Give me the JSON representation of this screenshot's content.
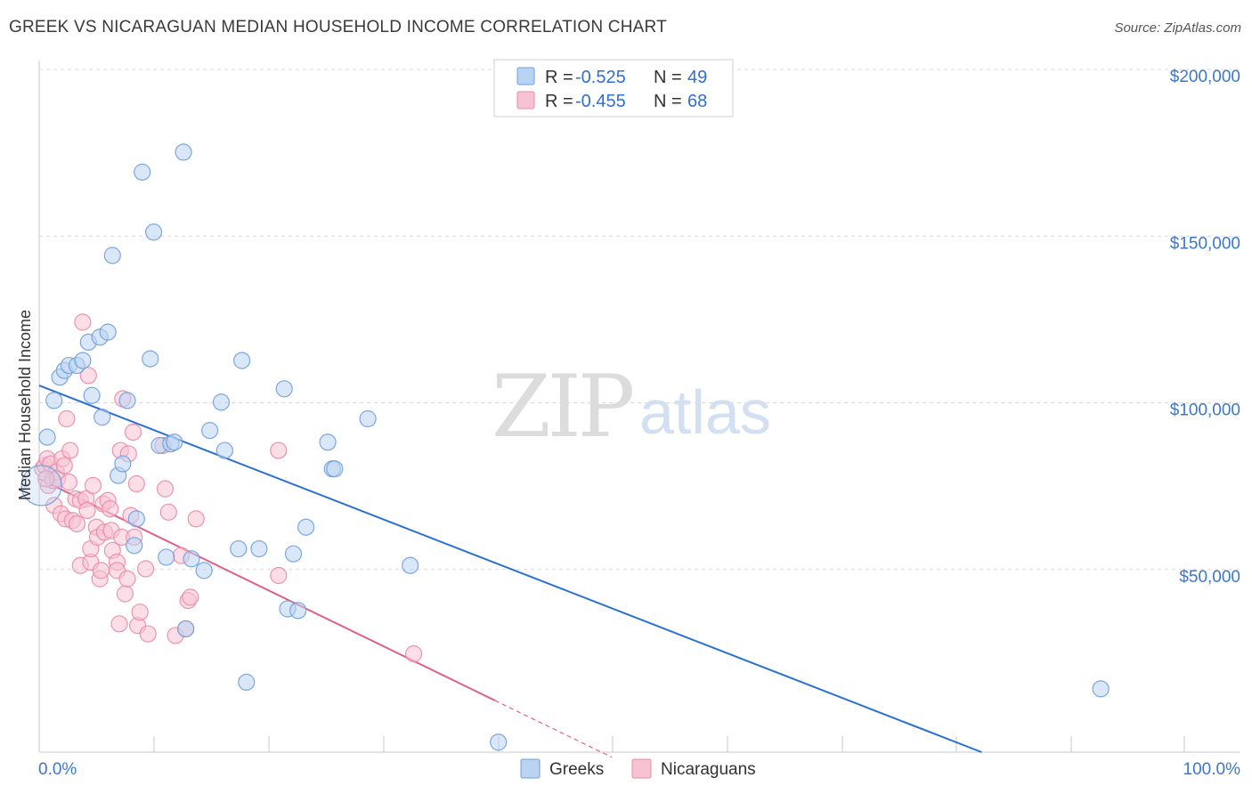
{
  "title": "GREEK VS NICARAGUAN MEDIAN HOUSEHOLD INCOME CORRELATION CHART",
  "source": "Source: ZipAtlas.com",
  "watermark": {
    "zip": "ZIP",
    "atlas": "atlas"
  },
  "colors": {
    "greeks_fill": "#b9d3f3",
    "greeks_stroke": "#6f9fdc",
    "greeks_line": "#2b6fd6",
    "nicaraguans_fill": "#f7c3d2",
    "nicaraguans_stroke": "#e98aa8",
    "nicaraguans_line": "#e0608d",
    "tick_text": "#3b78c8",
    "grid": "#d8d8d8"
  },
  "legend": {
    "greeks": {
      "r_label": "R =",
      "r_value": "-0.525",
      "n_label": "N =",
      "n_value": "49"
    },
    "nicaraguans": {
      "r_label": "R =",
      "r_value": "-0.455",
      "n_label": "N =",
      "n_value": "68"
    }
  },
  "bottom_legend": {
    "greeks": "Greeks",
    "nicaraguans": "Nicaraguans"
  },
  "chart_data": {
    "type": "scatter",
    "title": "GREEK VS NICARAGUAN MEDIAN HOUSEHOLD INCOME CORRELATION CHART",
    "ylabel": "Median Household Income",
    "xlabel": "",
    "xlim": [
      0,
      100
    ],
    "ylim": [
      0,
      210000
    ],
    "x_tick_labels": {
      "left": "0.0%",
      "right": "100.0%"
    },
    "x_minor_ticks": [
      0,
      10,
      20,
      30,
      40,
      50,
      60,
      70,
      80,
      90,
      100
    ],
    "y_ticks": [
      {
        "value": 50000,
        "label": "$50,000"
      },
      {
        "value": 100000,
        "label": "$100,000"
      },
      {
        "value": 150000,
        "label": "$150,000"
      },
      {
        "value": 200000,
        "label": "$200,000"
      }
    ],
    "series": [
      {
        "name": "Greeks",
        "r": -0.525,
        "n": 49,
        "trend": {
          "x0": 0,
          "y0": 110000,
          "x1": 82.3,
          "y1": 0,
          "dashed_after_x": null
        },
        "points": [
          [
            0.7,
            94500,
            1
          ],
          [
            1.3,
            105500,
            1
          ],
          [
            1.8,
            112500,
            1
          ],
          [
            2.2,
            114500,
            1
          ],
          [
            2.6,
            116000,
            1
          ],
          [
            3.3,
            116000,
            1
          ],
          [
            3.8,
            117500,
            1
          ],
          [
            4.3,
            123000,
            1
          ],
          [
            4.6,
            107000,
            1
          ],
          [
            5.3,
            124500,
            1
          ],
          [
            5.5,
            100500,
            1
          ],
          [
            6.0,
            126000,
            1
          ],
          [
            6.4,
            149000,
            1
          ],
          [
            6.9,
            83000,
            1
          ],
          [
            7.3,
            86500,
            1
          ],
          [
            7.7,
            105500,
            1
          ],
          [
            8.3,
            62000,
            1
          ],
          [
            8.5,
            70000,
            1
          ],
          [
            9.0,
            174000,
            1
          ],
          [
            9.7,
            118000,
            1
          ],
          [
            10.0,
            156000,
            1
          ],
          [
            10.5,
            92000,
            1
          ],
          [
            11.1,
            58500,
            1
          ],
          [
            11.5,
            92500,
            1
          ],
          [
            11.8,
            93000,
            1
          ],
          [
            12.6,
            180000,
            1
          ],
          [
            12.8,
            37000,
            1
          ],
          [
            13.3,
            58000,
            1
          ],
          [
            14.4,
            54500,
            1
          ],
          [
            14.9,
            96500,
            1
          ],
          [
            15.9,
            105000,
            1
          ],
          [
            16.2,
            90500,
            1
          ],
          [
            17.4,
            61000,
            1
          ],
          [
            17.7,
            117500,
            1
          ],
          [
            18.1,
            21000,
            1
          ],
          [
            19.2,
            61000,
            1
          ],
          [
            21.4,
            109000,
            1
          ],
          [
            21.7,
            43000,
            1
          ],
          [
            22.2,
            59500,
            1
          ],
          [
            22.6,
            42500,
            1
          ],
          [
            23.3,
            67500,
            1
          ],
          [
            25.2,
            93000,
            1
          ],
          [
            25.6,
            85000,
            1
          ],
          [
            25.8,
            85000,
            1
          ],
          [
            28.7,
            100000,
            1
          ],
          [
            32.4,
            56000,
            1
          ],
          [
            40.1,
            3000,
            1
          ],
          [
            92.7,
            19000,
            1
          ],
          [
            0.2,
            80000,
            2.5
          ]
        ]
      },
      {
        "name": "Nicaraguans",
        "r": -0.455,
        "n": 68,
        "trend": {
          "x0": 0,
          "y0": 82000,
          "x1": 39.8,
          "y1": 15500,
          "dash_x1": 50,
          "dash_y1": -1500
        },
        "points": [
          [
            0.3,
            85000,
            1
          ],
          [
            0.5,
            86000,
            1
          ],
          [
            0.7,
            88000,
            1
          ],
          [
            0.8,
            80000,
            1
          ],
          [
            1.0,
            86500,
            1
          ],
          [
            1.2,
            81500,
            1
          ],
          [
            1.3,
            74000,
            1
          ],
          [
            1.5,
            84000,
            1
          ],
          [
            1.6,
            82000,
            1
          ],
          [
            1.9,
            71500,
            1
          ],
          [
            2.0,
            88000,
            1
          ],
          [
            2.2,
            86000,
            1
          ],
          [
            2.3,
            70000,
            1
          ],
          [
            2.4,
            100000,
            1
          ],
          [
            2.6,
            81000,
            1
          ],
          [
            2.7,
            90500,
            1
          ],
          [
            2.9,
            69500,
            1
          ],
          [
            3.2,
            76000,
            1
          ],
          [
            3.3,
            68500,
            1
          ],
          [
            3.6,
            75500,
            1
          ],
          [
            3.6,
            56000,
            1
          ],
          [
            3.8,
            129000,
            1
          ],
          [
            4.1,
            76000,
            1
          ],
          [
            4.2,
            72500,
            1
          ],
          [
            4.3,
            113000,
            1
          ],
          [
            4.5,
            57000,
            1
          ],
          [
            4.5,
            61000,
            1
          ],
          [
            4.7,
            80000,
            1
          ],
          [
            5.0,
            67500,
            1
          ],
          [
            5.1,
            64500,
            1
          ],
          [
            5.3,
            52000,
            1
          ],
          [
            5.4,
            54500,
            1
          ],
          [
            5.6,
            74500,
            1
          ],
          [
            5.7,
            66000,
            1
          ],
          [
            6.0,
            75500,
            1
          ],
          [
            6.2,
            73000,
            1
          ],
          [
            6.3,
            66500,
            1
          ],
          [
            6.4,
            60500,
            1
          ],
          [
            6.8,
            57000,
            1
          ],
          [
            6.8,
            54500,
            1
          ],
          [
            7.0,
            38500,
            1
          ],
          [
            7.1,
            90500,
            1
          ],
          [
            7.2,
            64500,
            1
          ],
          [
            7.3,
            106000,
            1
          ],
          [
            7.5,
            47500,
            1
          ],
          [
            7.7,
            52000,
            1
          ],
          [
            7.8,
            89500,
            1
          ],
          [
            8.0,
            71000,
            1
          ],
          [
            8.2,
            96000,
            1
          ],
          [
            8.3,
            64500,
            1
          ],
          [
            8.5,
            80500,
            1
          ],
          [
            8.6,
            38000,
            1
          ],
          [
            8.8,
            42000,
            1
          ],
          [
            9.3,
            55000,
            1
          ],
          [
            9.5,
            35500,
            1
          ],
          [
            10.8,
            92000,
            1
          ],
          [
            11.0,
            79000,
            1
          ],
          [
            11.3,
            72000,
            1
          ],
          [
            11.9,
            35000,
            1
          ],
          [
            12.4,
            59000,
            1
          ],
          [
            12.8,
            37000,
            1
          ],
          [
            13.0,
            45500,
            1
          ],
          [
            13.2,
            46500,
            1
          ],
          [
            13.7,
            70000,
            1
          ],
          [
            20.9,
            90500,
            1
          ],
          [
            20.9,
            53000,
            1
          ],
          [
            32.7,
            29500,
            1
          ],
          [
            0.6,
            82000,
            1
          ]
        ]
      }
    ]
  }
}
